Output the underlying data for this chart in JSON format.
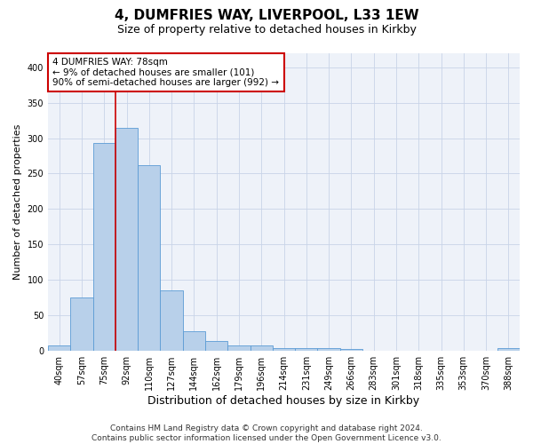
{
  "title": "4, DUMFRIES WAY, LIVERPOOL, L33 1EW",
  "subtitle": "Size of property relative to detached houses in Kirkby",
  "xlabel": "Distribution of detached houses by size in Kirkby",
  "ylabel": "Number of detached properties",
  "categories": [
    "40sqm",
    "57sqm",
    "75sqm",
    "92sqm",
    "110sqm",
    "127sqm",
    "144sqm",
    "162sqm",
    "179sqm",
    "196sqm",
    "214sqm",
    "231sqm",
    "249sqm",
    "266sqm",
    "283sqm",
    "301sqm",
    "318sqm",
    "335sqm",
    "353sqm",
    "370sqm",
    "388sqm"
  ],
  "values": [
    7,
    75,
    293,
    315,
    262,
    85,
    27,
    14,
    7,
    7,
    4,
    4,
    3,
    2,
    0,
    0,
    0,
    0,
    0,
    0,
    3
  ],
  "bar_color": "#b8d0ea",
  "bar_edge_color": "#5b9bd5",
  "bar_width": 1.0,
  "property_label": "4 DUMFRIES WAY: 78sqm",
  "pct_smaller": "9% of detached houses are smaller (101)",
  "pct_larger": "90% of semi-detached houses are larger (992)",
  "vline_color": "#cc0000",
  "vline_x": 2.5,
  "annotation_box_color": "#cc0000",
  "grid_color": "#c8d4e8",
  "background_color": "#eef2f9",
  "footer1": "Contains HM Land Registry data © Crown copyright and database right 2024.",
  "footer2": "Contains public sector information licensed under the Open Government Licence v3.0.",
  "ylim": [
    0,
    420
  ],
  "title_fontsize": 11,
  "subtitle_fontsize": 9,
  "xlabel_fontsize": 9,
  "ylabel_fontsize": 8,
  "tick_fontsize": 7,
  "footer_fontsize": 6.5,
  "annot_fontsize": 7.5
}
